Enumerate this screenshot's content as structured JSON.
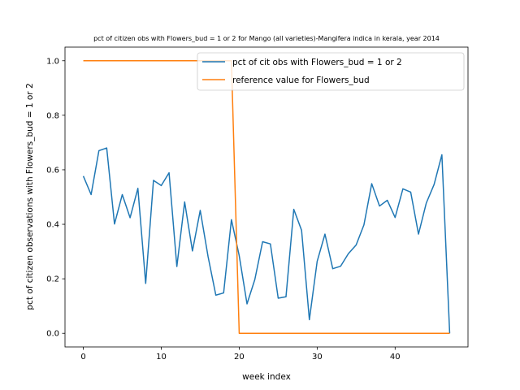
{
  "chart_data": {
    "type": "line",
    "title": "pct of citizen obs with Flowers_bud = 1 or 2 for Mango (all varieties)-Mangifera indica in kerala, year 2014",
    "xlabel": "week index",
    "ylabel": "pct of citizen observations with Flowers_bud = 1 or 2",
    "xlim": [
      -2.35,
      49.35
    ],
    "ylim": [
      -0.05,
      1.05
    ],
    "x_ticks": [
      0,
      10,
      20,
      30,
      40
    ],
    "y_ticks": [
      0.0,
      0.2,
      0.4,
      0.6,
      0.8,
      1.0
    ],
    "y_tick_labels": [
      "0.0",
      "0.2",
      "0.4",
      "0.6",
      "0.8",
      "1.0"
    ],
    "grid": false,
    "legend": "top-right",
    "series": [
      {
        "name": "pct of cit obs with Flowers_bud = 1 or 2",
        "color": "#1f77b4",
        "x": [
          0,
          1,
          2,
          3,
          4,
          5,
          6,
          7,
          8,
          9,
          10,
          11,
          12,
          13,
          14,
          15,
          16,
          17,
          18,
          19,
          20,
          21,
          22,
          23,
          24,
          25,
          26,
          27,
          28,
          29,
          30,
          31,
          32,
          33,
          34,
          35,
          36,
          37,
          38,
          39,
          40,
          41,
          42,
          43,
          44,
          45,
          46,
          47
        ],
        "values": [
          0.577,
          0.509,
          0.67,
          0.68,
          0.401,
          0.509,
          0.424,
          0.532,
          0.183,
          0.561,
          0.542,
          0.589,
          0.245,
          0.482,
          0.302,
          0.451,
          0.282,
          0.14,
          0.148,
          0.417,
          0.285,
          0.108,
          0.197,
          0.336,
          0.328,
          0.129,
          0.134,
          0.455,
          0.378,
          0.05,
          0.264,
          0.364,
          0.237,
          0.246,
          0.292,
          0.324,
          0.398,
          0.549,
          0.467,
          0.488,
          0.425,
          0.53,
          0.518,
          0.364,
          0.478,
          0.546,
          0.655,
          0.0
        ]
      },
      {
        "name": "reference value for Flowers_bud",
        "color": "#ff7f0e",
        "x": [
          0,
          1,
          2,
          3,
          4,
          5,
          6,
          7,
          8,
          9,
          10,
          11,
          12,
          13,
          14,
          15,
          16,
          17,
          18,
          19,
          20,
          21,
          22,
          23,
          24,
          25,
          26,
          27,
          28,
          29,
          30,
          31,
          32,
          33,
          34,
          35,
          36,
          37,
          38,
          39,
          40,
          41,
          42,
          43,
          44,
          45,
          46,
          47
        ],
        "values": [
          1,
          1,
          1,
          1,
          1,
          1,
          1,
          1,
          1,
          1,
          1,
          1,
          1,
          1,
          1,
          1,
          1,
          1,
          1,
          1,
          0,
          0,
          0,
          0,
          0,
          0,
          0,
          0,
          0,
          0,
          0,
          0,
          0,
          0,
          0,
          0,
          0,
          0,
          0,
          0,
          0,
          0,
          0,
          0,
          0,
          0,
          0,
          0
        ]
      }
    ]
  }
}
